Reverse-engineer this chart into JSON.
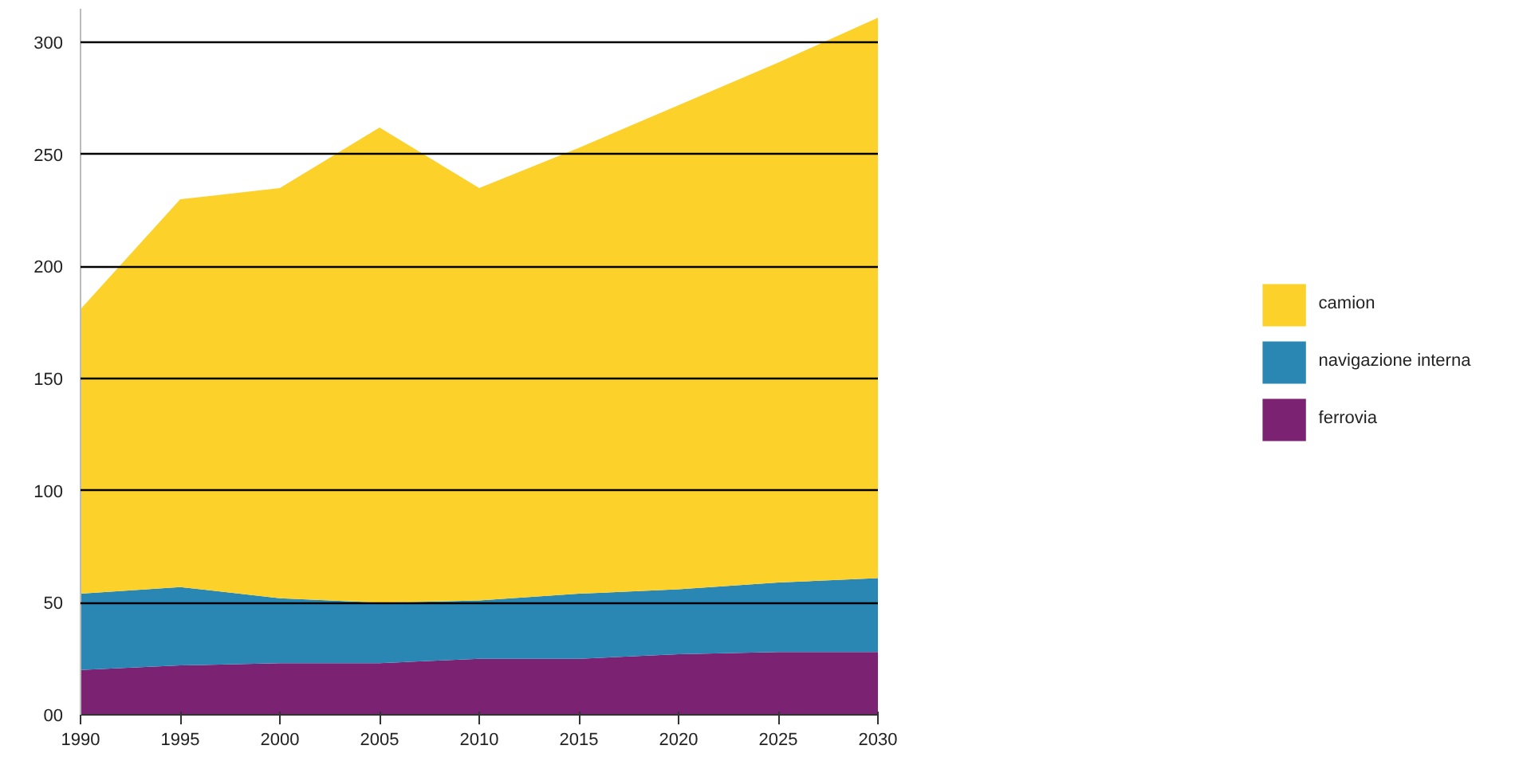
{
  "chart_data": {
    "type": "area",
    "stacked": true,
    "x": [
      1990,
      1995,
      2000,
      2005,
      2010,
      2015,
      2020,
      2025,
      2030
    ],
    "series": [
      {
        "name": "ferrovia",
        "color": "#7b2273",
        "values": [
          20,
          22,
          23,
          23,
          25,
          25,
          27,
          28,
          28
        ]
      },
      {
        "name": "navigazione interna",
        "color": "#2a87b4",
        "values": [
          34,
          35,
          29,
          27,
          26,
          29,
          29,
          31,
          33
        ]
      },
      {
        "name": "camion",
        "color": "#fcd12a",
        "values": [
          127,
          173,
          183,
          212,
          184,
          199,
          216,
          232,
          250
        ]
      }
    ],
    "xlim": [
      1990,
      2030
    ],
    "xticks": [
      1990,
      1995,
      2000,
      2005,
      2010,
      2015,
      2020,
      2025,
      2030
    ],
    "ylim": [
      0,
      315
    ],
    "yticks": [
      {
        "value": 0,
        "label": "00"
      },
      50,
      100,
      150,
      200,
      250,
      300
    ],
    "grid": "y",
    "legend": "right"
  }
}
